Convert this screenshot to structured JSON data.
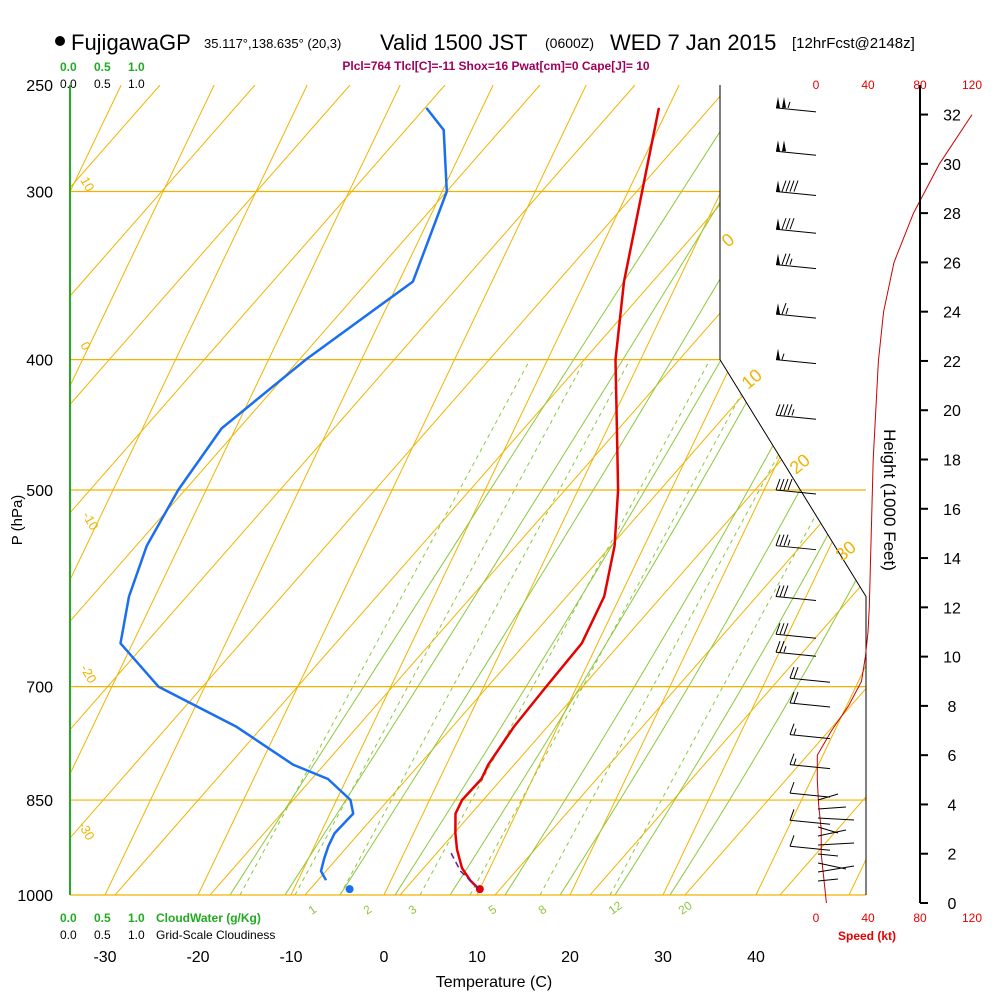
{
  "header": {
    "station": "FujigawaGP",
    "coords": "35.117°,138.635° (20,3)",
    "valid": "Valid 1500 JST",
    "utc": "(0600Z)",
    "date": "WED 7 Jan 2015",
    "forecast": "[12hrFcst@2148z]",
    "indices": "Plcl=764 Tlcl[C]=-11 Shox=16 Pwat[cm]=0 Cape[J]= 10"
  },
  "colors": {
    "temperature": "#e60000",
    "dewpoint": "#1a6ef0",
    "isobar": "#f0b400",
    "mixing_ratio": "#8cc83c",
    "wind_speed": "#cc0000",
    "header_indices": "#a0005a",
    "cloud_label": "#22aa22"
  },
  "chart_data": {
    "type": "line",
    "title": "FujigawaGP Valid 1500 JST WED 7 Jan 2015",
    "xlabel": "Temperature (C)",
    "ylabel": "P (hPa)",
    "right_ylabel": "Height (1000 Feet)",
    "x_ticks": [
      "-30",
      "-20",
      "-10",
      "0",
      "10",
      "20",
      "30",
      "40"
    ],
    "p_ticks": [
      "250",
      "300",
      "400",
      "500",
      "700",
      "850",
      "1000"
    ],
    "p_values": [
      250,
      300,
      400,
      500,
      700,
      850,
      1000
    ],
    "height_ticks": [
      "0",
      "2",
      "4",
      "6",
      "8",
      "10",
      "12",
      "14",
      "16",
      "18",
      "20",
      "22",
      "24",
      "26",
      "28",
      "30",
      "32"
    ],
    "speed_axis_label": "Speed (kt)",
    "speed_ticks": [
      "0",
      "40",
      "80",
      "120"
    ],
    "cloud_water_label": "CloudWater (g/Kg)",
    "cloud_water_ticks": [
      "0.0",
      "0.5",
      "1.0"
    ],
    "cloudiness_label": "Grid-Scale Cloudiness",
    "cloudiness_ticks": [
      "0.0",
      "0.5",
      "1.0"
    ],
    "mixing_ratio_labels": [
      "1",
      "2",
      "3",
      "5",
      "8",
      "12",
      "20"
    ],
    "isotherm_labels": [
      "10",
      "0",
      "-10",
      "-20",
      "-30"
    ],
    "right_isotherm_labels": [
      "0",
      "10",
      "20",
      "30"
    ],
    "series": [
      {
        "name": "Temperature",
        "points": [
          [
            9.9,
            990
          ],
          [
            8.5,
            975
          ],
          [
            7.0,
            955
          ],
          [
            5.5,
            925
          ],
          [
            4.5,
            900
          ],
          [
            3.5,
            870
          ],
          [
            3.5,
            850
          ],
          [
            4.5,
            820
          ],
          [
            4.5,
            800
          ],
          [
            5.3,
            750
          ],
          [
            6.7,
            700
          ],
          [
            8.3,
            650
          ],
          [
            8.3,
            600
          ],
          [
            6.8,
            550
          ],
          [
            4.3,
            500
          ],
          [
            1.0,
            450
          ],
          [
            -2.7,
            400
          ],
          [
            -5.8,
            350
          ],
          [
            -8.5,
            300
          ],
          [
            -11.0,
            260
          ]
        ]
      },
      {
        "name": "Dewpoint",
        "points": [
          [
            -7.0,
            975
          ],
          [
            -8.0,
            960
          ],
          [
            -8.3,
            940
          ],
          [
            -8.5,
            920
          ],
          [
            -8.5,
            900
          ],
          [
            -7.5,
            870
          ],
          [
            -8.5,
            850
          ],
          [
            -12.0,
            820
          ],
          [
            -16.5,
            800
          ],
          [
            -24.5,
            750
          ],
          [
            -35.0,
            700
          ],
          [
            -41.3,
            650
          ],
          [
            -42.8,
            600
          ],
          [
            -43.5,
            550
          ],
          [
            -43.0,
            500
          ],
          [
            -41.5,
            450
          ],
          [
            -36.0,
            400
          ],
          [
            -28.5,
            350
          ],
          [
            -29.5,
            300
          ],
          [
            -33.0,
            270
          ],
          [
            -36.0,
            260
          ]
        ]
      }
    ],
    "surface_temperature": 10,
    "surface_dewpoint": -4,
    "wind_barbs": [
      {
        "p": 260,
        "speed": 105
      },
      {
        "p": 280,
        "speed": 100
      },
      {
        "p": 300,
        "speed": 90
      },
      {
        "p": 320,
        "speed": 80
      },
      {
        "p": 340,
        "speed": 75
      },
      {
        "p": 370,
        "speed": 65
      },
      {
        "p": 400,
        "speed": 55
      },
      {
        "p": 440,
        "speed": 45
      },
      {
        "p": 500,
        "speed": 40
      },
      {
        "p": 550,
        "speed": 35
      },
      {
        "p": 600,
        "speed": 30
      },
      {
        "p": 640,
        "speed": 30
      },
      {
        "p": 660,
        "speed": 25
      },
      {
        "p": 690,
        "speed": 20
      },
      {
        "p": 720,
        "speed": 20
      },
      {
        "p": 760,
        "speed": 15
      },
      {
        "p": 800,
        "speed": 15
      },
      {
        "p": 840,
        "speed": 10
      },
      {
        "p": 880,
        "speed": 10
      },
      {
        "p": 920,
        "speed": 10
      }
    ],
    "wind_speed_profile": [
      [
        8,
        0
      ],
      [
        6,
        1
      ],
      [
        4,
        2
      ],
      [
        4,
        3
      ],
      [
        2,
        4
      ],
      [
        1,
        5
      ],
      [
        1,
        6
      ],
      [
        12,
        7
      ],
      [
        25,
        8
      ],
      [
        35,
        9
      ],
      [
        38,
        10
      ],
      [
        40,
        11
      ],
      [
        41,
        12
      ],
      [
        42,
        14
      ],
      [
        43,
        16
      ],
      [
        44,
        18
      ],
      [
        46,
        20
      ],
      [
        48,
        22
      ],
      [
        52,
        24
      ],
      [
        60,
        26
      ],
      [
        75,
        28
      ],
      [
        95,
        30
      ],
      [
        120,
        32
      ]
    ]
  }
}
